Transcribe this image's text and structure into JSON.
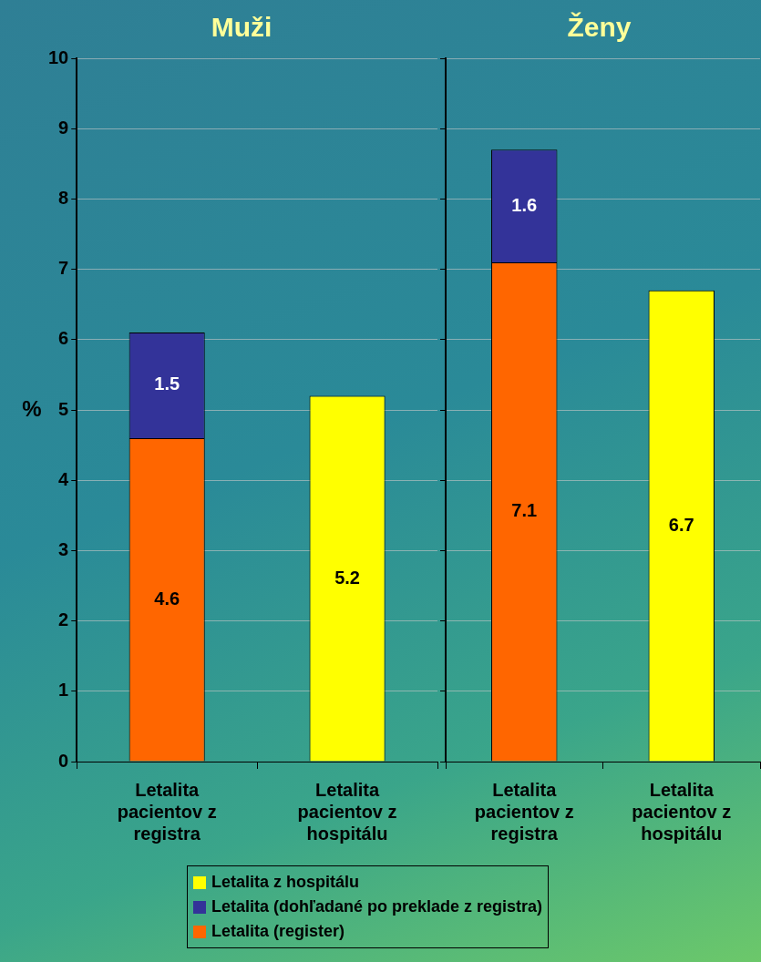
{
  "chart_data": [
    {
      "type": "bar",
      "stacked": true,
      "title": "Muži",
      "categories": [
        "Letalita pacientov z registra",
        "Letalita pacientov z hospitálu"
      ],
      "series": [
        {
          "name": "Letalita (register)",
          "color": "#ff6600",
          "values": [
            4.6,
            null
          ]
        },
        {
          "name": "Letalita (dohľadané po preklade z registra)",
          "color": "#333399",
          "values": [
            1.5,
            null
          ]
        },
        {
          "name": "Letalita z hospitálu",
          "color": "#ffff00",
          "values": [
            null,
            5.2
          ]
        }
      ],
      "ylabel": "%",
      "ylim": [
        0,
        10
      ],
      "yticks": [
        0,
        1,
        2,
        3,
        4,
        5,
        6,
        7,
        8,
        9,
        10
      ],
      "grid": "y",
      "legend": "bottom",
      "data_labels": true
    },
    {
      "type": "bar",
      "stacked": true,
      "title": "Ženy",
      "categories": [
        "Letalita pacientov z registra",
        "Letalita pacientov z hospitálu"
      ],
      "series": [
        {
          "color": "#ff6600",
          "values": [
            7.1,
            null
          ]
        },
        {
          "color": "#333399",
          "values": [
            1.6,
            null
          ]
        },
        {
          "color": "#ffff00",
          "values": [
            null,
            6.7
          ]
        }
      ],
      "ylim": [
        0,
        10
      ],
      "yticks": [
        0,
        1,
        2,
        3,
        4,
        5,
        6,
        7,
        8,
        9,
        10
      ],
      "grid": "y",
      "tick_labels": "x",
      "data_labels": true
    }
  ]
}
